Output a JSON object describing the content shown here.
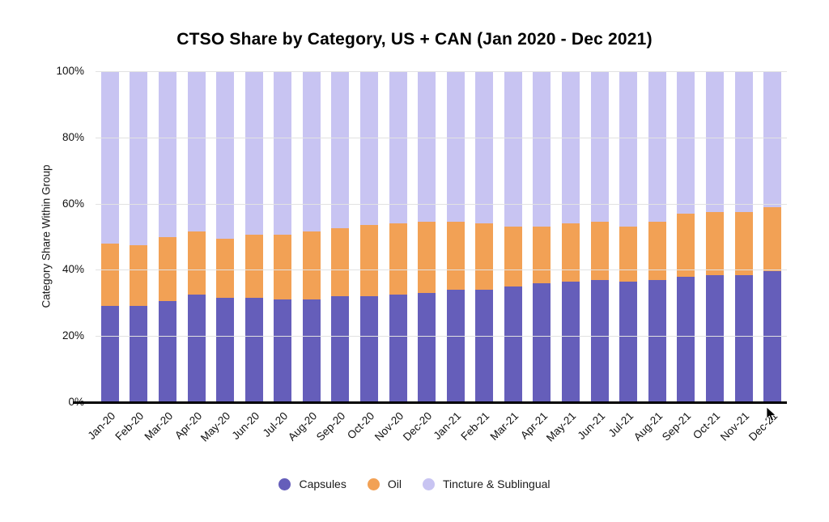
{
  "header": {
    "title": "CTSO Share by Category, US + CAN (Jan 2020 - Dec 2021)"
  },
  "y_axis": {
    "label": "Category Share Within Group",
    "tick_values": [
      0,
      20,
      40,
      60,
      80,
      100
    ],
    "tick_labels": [
      "0%",
      "20%",
      "40%",
      "60%",
      "80%",
      "100%"
    ]
  },
  "colors": {
    "capsules": "#655EBA",
    "oil": "#F2A155",
    "tincture": "#C8C4F2",
    "gridline": "#e2e2e2",
    "axis_line": "#000000"
  },
  "chart_data": {
    "type": "bar",
    "stacked": true,
    "title": "CTSO Share by Category, US + CAN (Jan 2020 - Dec 2021)",
    "xlabel": "",
    "ylabel": "Category Share Within Group",
    "ylim": [
      0,
      100
    ],
    "yticks": [
      0,
      20,
      40,
      60,
      80,
      100
    ],
    "grid": true,
    "legend_position": "bottom",
    "categories": [
      "Jan-20",
      "Feb-20",
      "Mar-20",
      "Apr-20",
      "May-20",
      "Jun-20",
      "Jul-20",
      "Aug-20",
      "Sep-20",
      "Oct-20",
      "Nov-20",
      "Dec-20",
      "Jan-21",
      "Feb-21",
      "Mar-21",
      "Apr-21",
      "May-21",
      "Jun-21",
      "Jul-21",
      "Aug-21",
      "Sep-21",
      "Oct-21",
      "Nov-21",
      "Dec-21"
    ],
    "series": [
      {
        "name": "Capsules",
        "color": "#655EBA",
        "values": [
          29,
          29,
          30.5,
          32.5,
          31.5,
          31.5,
          31,
          31,
          32,
          32,
          32.5,
          33,
          34,
          34,
          35,
          36,
          36.5,
          37,
          36.5,
          37,
          38,
          38.5,
          38.5,
          39.5
        ]
      },
      {
        "name": "Oil",
        "color": "#F2A155",
        "values": [
          19,
          18.5,
          19.5,
          19,
          18,
          19,
          19.5,
          20.5,
          20.5,
          21.5,
          21.5,
          21.5,
          20.5,
          20,
          18,
          17,
          17.5,
          17.5,
          16.5,
          17.5,
          19,
          19,
          19,
          19.5
        ]
      },
      {
        "name": "Tincture & Sublingual",
        "color": "#C8C4F2",
        "values": [
          52,
          52.5,
          50,
          48.5,
          50.5,
          49.5,
          49.5,
          48.5,
          47.5,
          46.5,
          46,
          45.5,
          45.5,
          46,
          47,
          47,
          46,
          45.5,
          47,
          45.5,
          43,
          42.5,
          42.5,
          41
        ]
      }
    ]
  }
}
